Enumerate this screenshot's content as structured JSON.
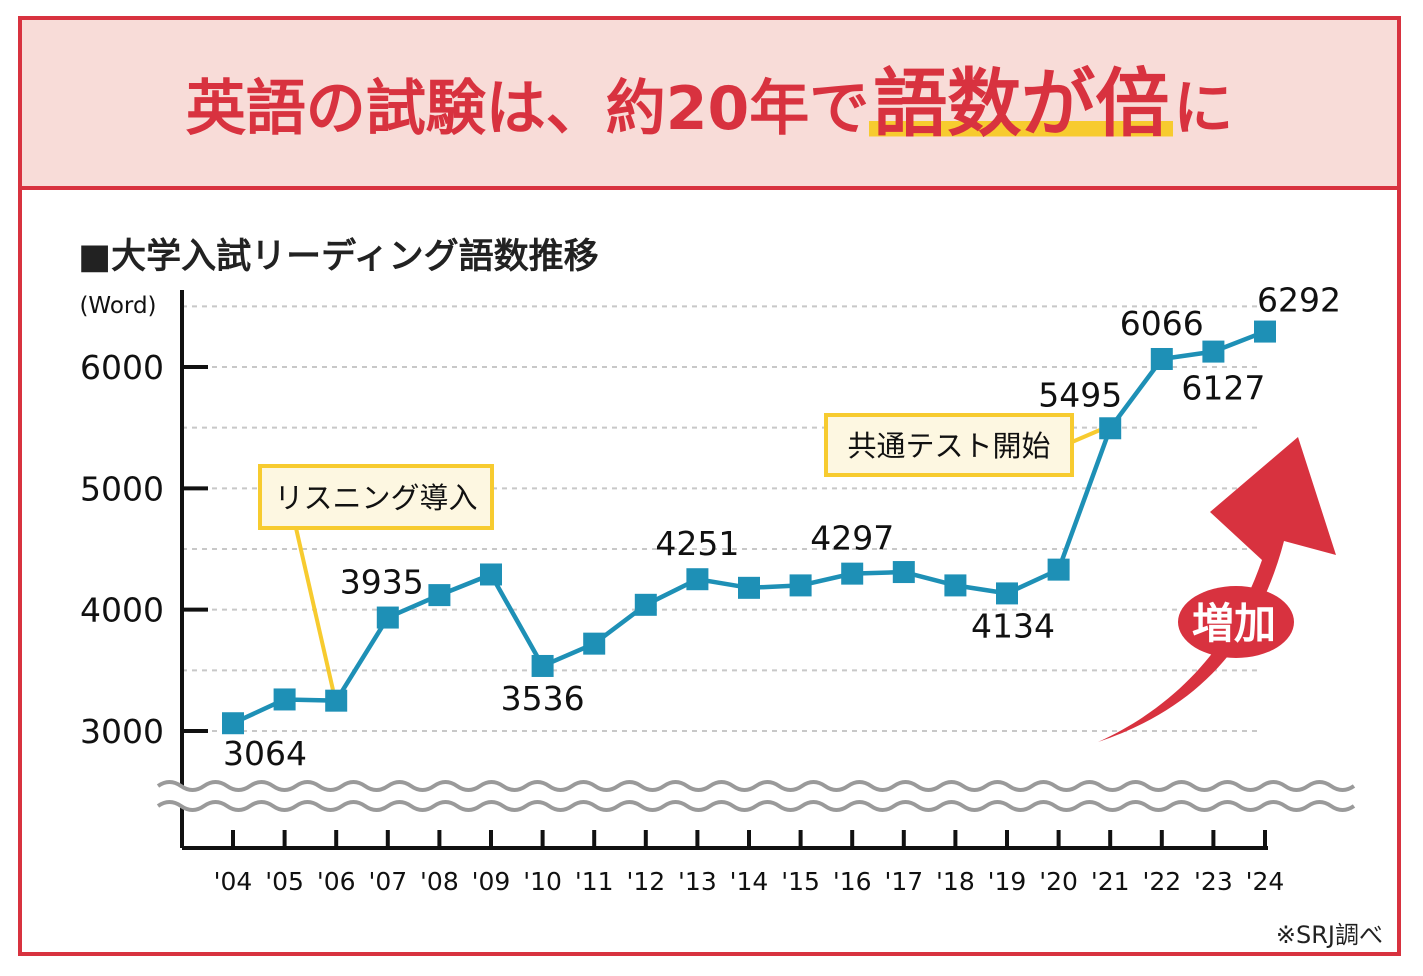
{
  "title": {
    "prefix": "英語の試験は、約20年で",
    "highlight": "語数が倍",
    "suffix": "に"
  },
  "subtitle": "■大学入試リーディング語数推移",
  "source_note": "※SRJ調べ",
  "colors": {
    "accent_red": "#d8323f",
    "header_bg": "#f8dcd8",
    "line": "#1e90b6",
    "callout_border": "#f7cb2f",
    "callout_bg": "#fdf7e1"
  },
  "chart_data": {
    "type": "line",
    "title": "大学入試リーディング語数推移",
    "ylabel": "(Word)",
    "xlabel": "",
    "ylim": [
      2600,
      6500
    ],
    "yticks": [
      3000,
      4000,
      5000,
      6000
    ],
    "ytick_labels": [
      "3000",
      "4000",
      "5000",
      "6000"
    ],
    "categories": [
      "'04",
      "'05",
      "'06",
      "'07",
      "'08",
      "'09",
      "'10",
      "'11",
      "'12",
      "'13",
      "'14",
      "'15",
      "'16",
      "'17",
      "'18",
      "'19",
      "'20",
      "'21",
      "'22",
      "'23",
      "'24"
    ],
    "series": [
      {
        "name": "語数",
        "values": [
          3064,
          3260,
          3250,
          3935,
          4120,
          4290,
          3536,
          3720,
          4040,
          4251,
          4180,
          4200,
          4297,
          4310,
          4200,
          4134,
          4330,
          5495,
          6066,
          6127,
          6292
        ]
      }
    ],
    "data_labels": [
      {
        "index": 0,
        "text": "3064",
        "pos": "below"
      },
      {
        "index": 3,
        "text": "3935",
        "pos": "above"
      },
      {
        "index": 6,
        "text": "3536",
        "pos": "below"
      },
      {
        "index": 9,
        "text": "4251",
        "pos": "above"
      },
      {
        "index": 12,
        "text": "4297",
        "pos": "above"
      },
      {
        "index": 15,
        "text": "4134",
        "pos": "below"
      },
      {
        "index": 17,
        "text": "5495",
        "pos": "above-left"
      },
      {
        "index": 18,
        "text": "6066",
        "pos": "above"
      },
      {
        "index": 19,
        "text": "6127",
        "pos": "below"
      },
      {
        "index": 20,
        "text": "6292",
        "pos": "above-right"
      }
    ],
    "annotations": [
      {
        "text": "リスニング導入",
        "index": 2
      },
      {
        "text": "共通テスト開始",
        "index": 17
      }
    ],
    "arrow_label": "増加",
    "grid": true,
    "axis_break": true
  }
}
